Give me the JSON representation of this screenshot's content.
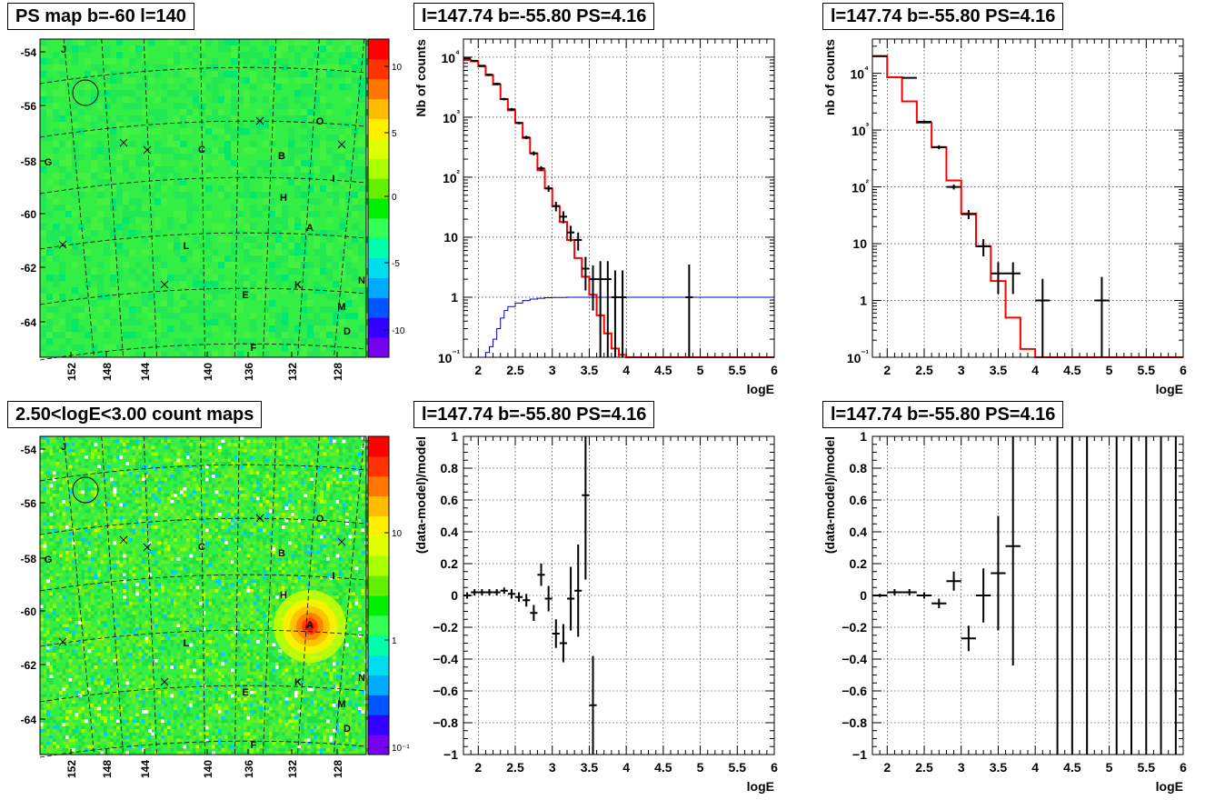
{
  "panels": {
    "map_ps": {
      "title": "PS map b=-60 l=140"
    },
    "map_counts": {
      "title": "2.50<logE<3.00 count maps"
    },
    "spec1": {
      "title": "l=147.74 b=-55.80 PS=4.16"
    },
    "spec2": {
      "title": "l=147.74 b=-55.80 PS=4.16"
    },
    "res1": {
      "title": "l=147.74 b=-55.80 PS=4.16"
    },
    "res2": {
      "title": "l=147.74 b=-55.80 PS=4.16"
    }
  },
  "maps": {
    "y_ticks": [
      "-54",
      "-56",
      "-58",
      "-60",
      "-62",
      "-64"
    ],
    "x_ticks": [
      "152",
      "148",
      "144",
      "140",
      "136",
      "132",
      "128"
    ],
    "source_labels": [
      "J",
      "O",
      "G",
      "C",
      "B",
      "I",
      "H",
      "A",
      "L",
      "N",
      "K",
      "E",
      "M",
      "D",
      "F"
    ],
    "ps_colorbar_ticks": [
      "10",
      "5",
      "0",
      "-5",
      "-10"
    ],
    "counts_colorbar_ticks": [
      "10",
      "1",
      "10⁻¹"
    ],
    "colors": {
      "background_green": "#33ee44",
      "hotspot": "#ff2200",
      "palette": [
        "#7700ee",
        "#3300ff",
        "#0055ff",
        "#00aaff",
        "#00ddee",
        "#00ffaa",
        "#33ff55",
        "#00ee00",
        "#66ee00",
        "#aaff00",
        "#ddff00",
        "#ffee00",
        "#ffbb00",
        "#ff7700",
        "#ff3300",
        "#ff0000"
      ]
    }
  },
  "chart_data": [
    {
      "type": "line",
      "panel": "spec1",
      "title": "l=147.74 b=-55.80 PS=4.16",
      "xlabel": "logE",
      "ylabel": "Nb of counts",
      "xlim": [
        1.8,
        6
      ],
      "ylim": [
        0.1,
        20000
      ],
      "yscale": "log",
      "grid": true,
      "x_ticks": [
        "2",
        "2.5",
        "3",
        "3.5",
        "4",
        "4.5",
        "5",
        "5.5",
        "6"
      ],
      "y_ticks": [
        {
          "v": 0.1,
          "label": "10⁻¹"
        },
        {
          "v": 1,
          "label": "1"
        },
        {
          "v": 10,
          "label": "10"
        },
        {
          "v": 100,
          "label": "10²"
        },
        {
          "v": 1000,
          "label": "10³"
        },
        {
          "v": 10000,
          "label": "10⁴"
        }
      ],
      "model_red": {
        "color": "#ff0000",
        "edges": [
          1.8,
          1.9,
          2.0,
          2.1,
          2.2,
          2.3,
          2.4,
          2.5,
          2.6,
          2.7,
          2.8,
          2.9,
          3.0,
          3.1,
          3.2,
          3.3,
          3.4,
          3.5,
          3.6,
          3.7,
          3.8,
          3.9,
          4.0,
          4.1,
          4.2,
          6.0
        ],
        "values": [
          9000,
          8500,
          7000,
          5000,
          3500,
          2000,
          1300,
          800,
          450,
          250,
          130,
          65,
          33,
          18,
          9,
          4.5,
          2.2,
          1.1,
          0.5,
          0.25,
          0.14,
          0.11,
          0.1,
          0.1,
          0.1
        ]
      },
      "model_blue": {
        "color": "#0000cc",
        "edges": [
          1.8,
          2.1,
          2.15,
          2.2,
          2.25,
          2.3,
          2.35,
          2.4,
          2.5,
          2.6,
          2.7,
          2.8,
          2.9,
          3.0,
          3.2,
          3.4,
          3.6,
          6.0
        ],
        "values": [
          0.1,
          0.12,
          0.15,
          0.2,
          0.3,
          0.45,
          0.6,
          0.7,
          0.8,
          0.88,
          0.93,
          0.96,
          0.98,
          0.99,
          1,
          1,
          1
        ]
      },
      "data_points": [
        {
          "x": 1.85,
          "y": 9500,
          "ylo": 9300,
          "yhi": 9700
        },
        {
          "x": 1.95,
          "y": 8700,
          "ylo": 8500,
          "yhi": 8900
        },
        {
          "x": 2.05,
          "y": 7200,
          "ylo": 7000,
          "yhi": 7400
        },
        {
          "x": 2.15,
          "y": 5100,
          "ylo": 4900,
          "yhi": 5300
        },
        {
          "x": 2.25,
          "y": 3600,
          "ylo": 3450,
          "yhi": 3750
        },
        {
          "x": 2.35,
          "y": 2000,
          "ylo": 1900,
          "yhi": 2100
        },
        {
          "x": 2.45,
          "y": 1350,
          "ylo": 1280,
          "yhi": 1420
        },
        {
          "x": 2.55,
          "y": 800,
          "ylo": 760,
          "yhi": 840
        },
        {
          "x": 2.65,
          "y": 460,
          "ylo": 430,
          "yhi": 490
        },
        {
          "x": 2.75,
          "y": 250,
          "ylo": 230,
          "yhi": 270
        },
        {
          "x": 2.85,
          "y": 140,
          "ylo": 128,
          "yhi": 152
        },
        {
          "x": 2.95,
          "y": 65,
          "ylo": 57,
          "yhi": 73
        },
        {
          "x": 3.05,
          "y": 33,
          "ylo": 27,
          "yhi": 39
        },
        {
          "x": 3.15,
          "y": 22,
          "ylo": 17,
          "yhi": 27
        },
        {
          "x": 3.25,
          "y": 12,
          "ylo": 8.5,
          "yhi": 15.5
        },
        {
          "x": 3.35,
          "y": 9,
          "ylo": 6,
          "yhi": 12
        },
        {
          "x": 3.45,
          "y": 3,
          "ylo": 1.3,
          "yhi": 4.7
        },
        {
          "x": 3.55,
          "y": 2,
          "ylo": 0.6,
          "yhi": 3.4
        },
        {
          "x": 3.65,
          "y": 2,
          "ylo": 0.1,
          "yhi": 4
        },
        {
          "x": 3.75,
          "y": 2,
          "ylo": 0.1,
          "yhi": 4
        },
        {
          "x": 3.85,
          "y": 1,
          "ylo": 0.1,
          "yhi": 2.8
        },
        {
          "x": 3.95,
          "y": 1,
          "ylo": 0.1,
          "yhi": 2.8
        },
        {
          "x": 4.85,
          "y": 1,
          "ylo": 0.1,
          "yhi": 3.5
        }
      ]
    },
    {
      "type": "line",
      "panel": "spec2",
      "title": "l=147.74 b=-55.80 PS=4.16",
      "xlabel": "logE",
      "ylabel": "nb of counts",
      "xlim": [
        1.8,
        6
      ],
      "ylim": [
        0.1,
        40000
      ],
      "yscale": "log",
      "grid": true,
      "x_ticks": [
        "2",
        "2.5",
        "3",
        "3.5",
        "4",
        "4.5",
        "5",
        "5.5",
        "6"
      ],
      "y_ticks": [
        {
          "v": 0.1,
          "label": "10⁻¹"
        },
        {
          "v": 1,
          "label": "1"
        },
        {
          "v": 10,
          "label": "10"
        },
        {
          "v": 100,
          "label": "10²"
        },
        {
          "v": 1000,
          "label": "10³"
        },
        {
          "v": 10000,
          "label": "10⁴"
        }
      ],
      "model_red": {
        "color": "#ff0000",
        "edges": [
          1.8,
          2.0,
          2.2,
          2.4,
          2.6,
          2.8,
          3.0,
          3.2,
          3.4,
          3.6,
          3.8,
          4.0,
          4.2,
          6.0
        ],
        "values": [
          20000,
          8500,
          3200,
          1350,
          500,
          130,
          34,
          9,
          2.2,
          0.5,
          0.14,
          0.1,
          0.1
        ]
      },
      "data_points": [
        {
          "x": 1.9,
          "y": 20000,
          "ylo": 19700,
          "yhi": 20300,
          "xerr": 0.1
        },
        {
          "x": 2.3,
          "y": 8300,
          "ylo": 8100,
          "yhi": 8500,
          "xerr": 0.1
        },
        {
          "x": 2.5,
          "y": 1400,
          "ylo": 1330,
          "yhi": 1470,
          "xerr": 0.1
        },
        {
          "x": 2.7,
          "y": 500,
          "ylo": 460,
          "yhi": 540,
          "xerr": 0.1
        },
        {
          "x": 2.9,
          "y": 100,
          "ylo": 90,
          "yhi": 110,
          "xerr": 0.1
        },
        {
          "x": 3.1,
          "y": 33,
          "ylo": 27,
          "yhi": 39,
          "xerr": 0.1
        },
        {
          "x": 3.3,
          "y": 9,
          "ylo": 6,
          "yhi": 12,
          "xerr": 0.1
        },
        {
          "x": 3.5,
          "y": 3,
          "ylo": 1.3,
          "yhi": 4.7,
          "xerr": 0.1
        },
        {
          "x": 3.7,
          "y": 3,
          "ylo": 1.3,
          "yhi": 4.7,
          "xerr": 0.1
        },
        {
          "x": 4.1,
          "y": 1,
          "ylo": 0.1,
          "yhi": 2.4,
          "xerr": 0.1
        },
        {
          "x": 4.9,
          "y": 1,
          "ylo": 0.1,
          "yhi": 2.6,
          "xerr": 0.1
        }
      ]
    },
    {
      "type": "scatter",
      "panel": "res1",
      "title": "l=147.74 b=-55.80 PS=4.16",
      "xlabel": "logE",
      "ylabel": "(data-model)/model",
      "xlim": [
        1.8,
        6
      ],
      "ylim": [
        -1,
        1
      ],
      "grid": true,
      "x_ticks": [
        "2",
        "2.5",
        "3",
        "3.5",
        "4",
        "4.5",
        "5",
        "5.5",
        "6"
      ],
      "y_ticks": [
        {
          "v": -1,
          "label": "−1"
        },
        {
          "v": -0.8,
          "label": "−0.8"
        },
        {
          "v": -0.6,
          "label": "−0.6"
        },
        {
          "v": -0.4,
          "label": "−0.4"
        },
        {
          "v": -0.2,
          "label": "−0.2"
        },
        {
          "v": 0,
          "label": "0"
        },
        {
          "v": 0.2,
          "label": "0.2"
        },
        {
          "v": 0.4,
          "label": "0.4"
        },
        {
          "v": 0.6,
          "label": "0.6"
        },
        {
          "v": 0.8,
          "label": "0.8"
        },
        {
          "v": 1,
          "label": "1"
        }
      ],
      "data_points": [
        {
          "x": 1.85,
          "y": 0.0,
          "ylo": -0.02,
          "yhi": 0.02
        },
        {
          "x": 1.95,
          "y": 0.02,
          "ylo": 0.0,
          "yhi": 0.04
        },
        {
          "x": 2.05,
          "y": 0.02,
          "ylo": 0.0,
          "yhi": 0.04
        },
        {
          "x": 2.15,
          "y": 0.02,
          "ylo": 0.0,
          "yhi": 0.04
        },
        {
          "x": 2.25,
          "y": 0.02,
          "ylo": 0.0,
          "yhi": 0.04
        },
        {
          "x": 2.35,
          "y": 0.03,
          "ylo": 0.01,
          "yhi": 0.05
        },
        {
          "x": 2.45,
          "y": 0.01,
          "ylo": -0.02,
          "yhi": 0.04
        },
        {
          "x": 2.55,
          "y": -0.01,
          "ylo": -0.04,
          "yhi": 0.02
        },
        {
          "x": 2.65,
          "y": -0.03,
          "ylo": -0.07,
          "yhi": 0.01
        },
        {
          "x": 2.75,
          "y": -0.11,
          "ylo": -0.16,
          "yhi": -0.06
        },
        {
          "x": 2.85,
          "y": 0.13,
          "ylo": 0.06,
          "yhi": 0.2
        },
        {
          "x": 2.95,
          "y": -0.02,
          "ylo": -0.1,
          "yhi": 0.06
        },
        {
          "x": 3.05,
          "y": -0.24,
          "ylo": -0.33,
          "yhi": -0.15
        },
        {
          "x": 3.15,
          "y": -0.3,
          "ylo": -0.42,
          "yhi": -0.18
        },
        {
          "x": 3.25,
          "y": -0.02,
          "ylo": -0.22,
          "yhi": 0.18
        },
        {
          "x": 3.35,
          "y": 0.03,
          "ylo": -0.26,
          "yhi": 0.32
        },
        {
          "x": 3.45,
          "y": 0.63,
          "ylo": 0.1,
          "yhi": 1.0
        },
        {
          "x": 3.55,
          "y": -0.69,
          "ylo": -1.0,
          "yhi": -0.38
        }
      ]
    },
    {
      "type": "scatter",
      "panel": "res2",
      "title": "l=147.74 b=-55.80 PS=4.16",
      "xlabel": "logE",
      "ylabel": "(data-model)/model",
      "xlim": [
        1.8,
        6
      ],
      "ylim": [
        -1,
        1
      ],
      "grid": true,
      "x_ticks": [
        "2",
        "2.5",
        "3",
        "3.5",
        "4",
        "4.5",
        "5",
        "5.5",
        "6"
      ],
      "y_ticks": [
        {
          "v": -1,
          "label": "−1"
        },
        {
          "v": -0.8,
          "label": "−0.8"
        },
        {
          "v": -0.6,
          "label": "−0.6"
        },
        {
          "v": -0.4,
          "label": "−0.4"
        },
        {
          "v": -0.2,
          "label": "−0.2"
        },
        {
          "v": 0,
          "label": "0"
        },
        {
          "v": 0.2,
          "label": "0.2"
        },
        {
          "v": 0.4,
          "label": "0.4"
        },
        {
          "v": 0.6,
          "label": "0.6"
        },
        {
          "v": 0.8,
          "label": "0.8"
        },
        {
          "v": 1,
          "label": "1"
        }
      ],
      "data_points": [
        {
          "x": 1.9,
          "y": 0.0,
          "ylo": -0.01,
          "yhi": 0.01,
          "xerr": 0.1
        },
        {
          "x": 2.1,
          "y": 0.02,
          "ylo": 0.0,
          "yhi": 0.04,
          "xerr": 0.1
        },
        {
          "x": 2.3,
          "y": 0.02,
          "ylo": 0.0,
          "yhi": 0.04,
          "xerr": 0.1
        },
        {
          "x": 2.5,
          "y": 0.0,
          "ylo": -0.02,
          "yhi": 0.02,
          "xerr": 0.1
        },
        {
          "x": 2.7,
          "y": -0.05,
          "ylo": -0.08,
          "yhi": -0.02,
          "xerr": 0.1
        },
        {
          "x": 2.9,
          "y": 0.09,
          "ylo": 0.03,
          "yhi": 0.15,
          "xerr": 0.1
        },
        {
          "x": 3.1,
          "y": -0.27,
          "ylo": -0.35,
          "yhi": -0.19,
          "xerr": 0.1
        },
        {
          "x": 3.3,
          "y": 0.0,
          "ylo": -0.17,
          "yhi": 0.17,
          "xerr": 0.1
        },
        {
          "x": 3.5,
          "y": 0.14,
          "ylo": -0.22,
          "yhi": 0.5,
          "xerr": 0.1
        },
        {
          "x": 3.7,
          "y": 0.31,
          "ylo": -0.44,
          "yhi": 1.0,
          "xerr": 0.1
        },
        {
          "x": 4.3,
          "y": 0,
          "ylo": -1.0,
          "yhi": 1.0,
          "xerr": 0
        },
        {
          "x": 4.5,
          "y": 0,
          "ylo": -1.0,
          "yhi": 1.0,
          "xerr": 0
        },
        {
          "x": 4.7,
          "y": 0,
          "ylo": -1.0,
          "yhi": 1.0,
          "xerr": 0
        },
        {
          "x": 5.1,
          "y": 0,
          "ylo": -1.0,
          "yhi": 1.0,
          "xerr": 0
        },
        {
          "x": 5.3,
          "y": 0,
          "ylo": -1.0,
          "yhi": 1.0,
          "xerr": 0
        },
        {
          "x": 5.5,
          "y": 0,
          "ylo": -1.0,
          "yhi": 1.0,
          "xerr": 0
        },
        {
          "x": 5.7,
          "y": 0,
          "ylo": -1.0,
          "yhi": 1.0,
          "xerr": 0
        },
        {
          "x": 5.9,
          "y": 0,
          "ylo": -1.0,
          "yhi": 1.0,
          "xerr": 0
        }
      ]
    }
  ]
}
